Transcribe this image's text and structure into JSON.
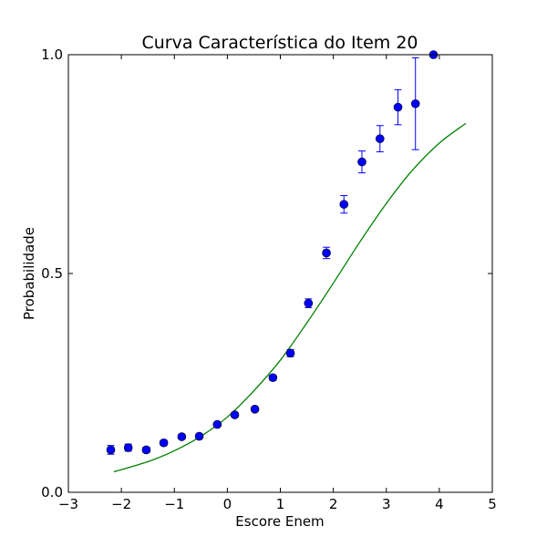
{
  "chart_data": {
    "type": "scatter",
    "title": "Curva Característica do Item 20",
    "xlabel": "Escore Enem",
    "ylabel": "Probabilidade",
    "xlim": [
      -3,
      5
    ],
    "ylim": [
      0.0,
      1.0
    ],
    "xticks": [
      "−3",
      "−2",
      "−1",
      "0",
      "1",
      "2",
      "3",
      "4",
      "5"
    ],
    "yticks": [
      "0.0",
      "0.5",
      "1.0"
    ],
    "grid": false,
    "colors": {
      "points": "#0000ff",
      "curve": "#008000"
    },
    "series": [
      {
        "kind": "errorbar-points",
        "points": [
          {
            "x": -2.2,
            "y": 0.097,
            "err": 0.01
          },
          {
            "x": -1.87,
            "y": 0.102,
            "err": 0.008
          },
          {
            "x": -1.53,
            "y": 0.097,
            "err": 0.006
          },
          {
            "x": -1.2,
            "y": 0.113,
            "err": 0.006
          },
          {
            "x": -0.86,
            "y": 0.127,
            "err": 0.005
          },
          {
            "x": -0.53,
            "y": 0.128,
            "err": 0.005
          },
          {
            "x": -0.19,
            "y": 0.155,
            "err": 0.005
          },
          {
            "x": 0.14,
            "y": 0.177,
            "err": 0.005
          },
          {
            "x": 0.52,
            "y": 0.19,
            "err": 0.005
          },
          {
            "x": 0.86,
            "y": 0.262,
            "err": 0.006
          },
          {
            "x": 1.19,
            "y": 0.318,
            "err": 0.008
          },
          {
            "x": 1.53,
            "y": 0.432,
            "err": 0.01
          },
          {
            "x": 1.87,
            "y": 0.547,
            "err": 0.013
          },
          {
            "x": 2.2,
            "y": 0.658,
            "err": 0.02
          },
          {
            "x": 2.54,
            "y": 0.755,
            "err": 0.025
          },
          {
            "x": 2.88,
            "y": 0.808,
            "err": 0.03
          },
          {
            "x": 3.22,
            "y": 0.88,
            "err": 0.04
          },
          {
            "x": 3.55,
            "y": 0.888,
            "err": 0.105
          },
          {
            "x": 3.89,
            "y": 1.0,
            "err": 0.0
          }
        ]
      },
      {
        "kind": "curve",
        "points": [
          {
            "x": -2.14,
            "y": 0.047
          },
          {
            "x": -1.5,
            "y": 0.07
          },
          {
            "x": -1.0,
            "y": 0.095
          },
          {
            "x": -0.5,
            "y": 0.128
          },
          {
            "x": 0.0,
            "y": 0.172
          },
          {
            "x": 0.5,
            "y": 0.232
          },
          {
            "x": 1.0,
            "y": 0.302
          },
          {
            "x": 1.5,
            "y": 0.387
          },
          {
            "x": 2.0,
            "y": 0.478
          },
          {
            "x": 2.5,
            "y": 0.572
          },
          {
            "x": 3.0,
            "y": 0.66
          },
          {
            "x": 3.5,
            "y": 0.737
          },
          {
            "x": 4.0,
            "y": 0.798
          },
          {
            "x": 4.5,
            "y": 0.843
          }
        ]
      }
    ]
  }
}
